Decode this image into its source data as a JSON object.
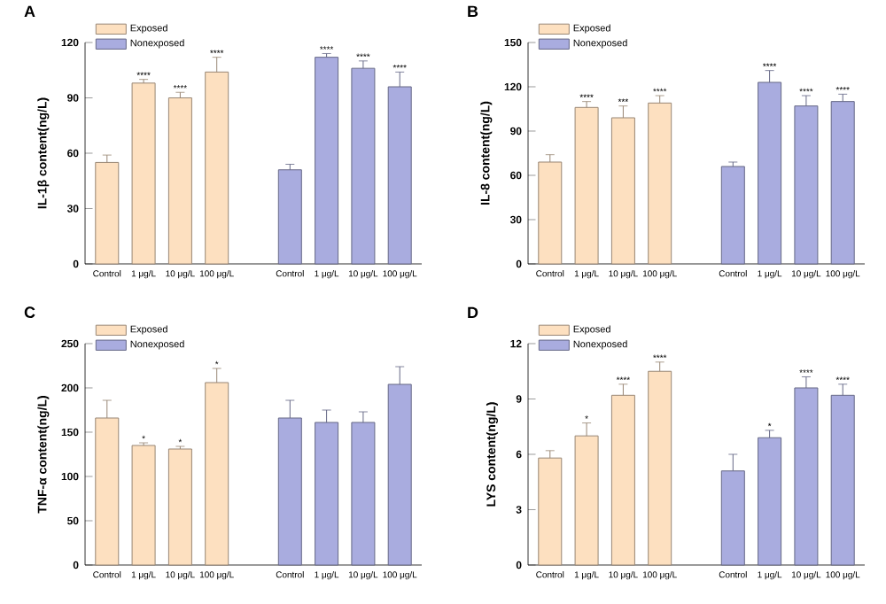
{
  "chart_data": [
    {
      "type": "bar",
      "title": "A",
      "ylabel": "IL-1β content(ng/L)",
      "categories": [
        "Control",
        "1 μg/L",
        "10 μg/L",
        "100 μg/L",
        "Control",
        "1 μg/L",
        "10 μg/L",
        "100 μg/L"
      ],
      "series": [
        {
          "name": "Exposed",
          "color": "#fde0c0",
          "values": [
            55,
            98,
            90,
            104,
            null,
            null,
            null,
            null
          ],
          "errors": [
            4,
            2,
            3,
            8,
            null,
            null,
            null,
            null
          ],
          "value_labels": [
            null,
            "****",
            "****",
            "****",
            null,
            null,
            null,
            null
          ]
        },
        {
          "name": "Nonexposed",
          "color": "#a9acdf",
          "values": [
            null,
            null,
            null,
            null,
            51,
            112,
            106,
            96
          ],
          "errors": [
            null,
            null,
            null,
            null,
            3,
            2,
            4,
            8
          ],
          "value_labels": [
            null,
            null,
            null,
            null,
            null,
            "****",
            "****",
            "****"
          ]
        }
      ],
      "ylim": [
        0,
        120
      ],
      "yticks": [
        0,
        30,
        60,
        90,
        120
      ],
      "legend": "top left"
    },
    {
      "type": "bar",
      "title": "B",
      "ylabel": "IL-8 content(ng/L)",
      "categories": [
        "Control",
        "1 μg/L",
        "10 μg/L",
        "100 μg/L",
        "Control",
        "1 μg/L",
        "10 μg/L",
        "100 μg/L"
      ],
      "series": [
        {
          "name": "Exposed",
          "color": "#fde0c0",
          "values": [
            69,
            106,
            99,
            109,
            null,
            null,
            null,
            null
          ],
          "errors": [
            5,
            4,
            8,
            5,
            null,
            null,
            null,
            null
          ],
          "value_labels": [
            null,
            "****",
            "***",
            "****",
            null,
            null,
            null,
            null
          ]
        },
        {
          "name": "Nonexposed",
          "color": "#a9acdf",
          "values": [
            null,
            null,
            null,
            null,
            66,
            123,
            107,
            110
          ],
          "errors": [
            null,
            null,
            null,
            null,
            3,
            8,
            7,
            5
          ],
          "value_labels": [
            null,
            null,
            null,
            null,
            null,
            "****",
            "****",
            "****"
          ]
        }
      ],
      "ylim": [
        0,
        150
      ],
      "yticks": [
        0,
        30,
        60,
        90,
        120,
        150
      ],
      "legend": "top left"
    },
    {
      "type": "bar",
      "title": "C",
      "ylabel": "TNF-α content(ng/L)",
      "categories": [
        "Control",
        "1 μg/L",
        "10 μg/L",
        "100 μg/L",
        "Control",
        "1 μg/L",
        "10 μg/L",
        "100 μg/L"
      ],
      "series": [
        {
          "name": "Exposed",
          "color": "#fde0c0",
          "values": [
            166,
            135,
            131,
            206,
            null,
            null,
            null,
            null
          ],
          "errors": [
            20,
            3,
            3,
            16,
            null,
            null,
            null,
            null
          ],
          "value_labels": [
            null,
            "*",
            "*",
            "*",
            null,
            null,
            null,
            null
          ]
        },
        {
          "name": "Nonexposed",
          "color": "#a9acdf",
          "values": [
            null,
            null,
            null,
            null,
            166,
            161,
            161,
            204
          ],
          "errors": [
            null,
            null,
            null,
            null,
            20,
            14,
            12,
            20
          ]
        }
      ],
      "ylim": [
        0,
        250
      ],
      "yticks": [
        0,
        50,
        100,
        150,
        200,
        250
      ],
      "legend": "top left"
    },
    {
      "type": "bar",
      "title": "D",
      "ylabel": "LYS content(ng/L)",
      "categories": [
        "Control",
        "1 μg/L",
        "10 μg/L",
        "100 μg/L",
        "Control",
        "1 μg/L",
        "10 μg/L",
        "100 μg/L"
      ],
      "series": [
        {
          "name": "Exposed",
          "color": "#fde0c0",
          "values": [
            5.8,
            7.0,
            9.2,
            10.5,
            null,
            null,
            null,
            null
          ],
          "errors": [
            0.4,
            0.7,
            0.6,
            0.5,
            null,
            null,
            null,
            null
          ],
          "value_labels": [
            null,
            "*",
            "****",
            "****",
            null,
            null,
            null,
            null
          ]
        },
        {
          "name": "Nonexposed",
          "color": "#a9acdf",
          "values": [
            null,
            null,
            null,
            null,
            5.1,
            6.9,
            9.6,
            9.2
          ],
          "errors": [
            null,
            null,
            null,
            null,
            0.9,
            0.4,
            0.6,
            0.6
          ],
          "value_labels": [
            null,
            null,
            null,
            null,
            null,
            "*",
            "****",
            "****"
          ]
        }
      ],
      "ylim": [
        0,
        12
      ],
      "yticks": [
        0,
        3,
        6,
        9,
        12
      ],
      "legend": "top left"
    }
  ]
}
